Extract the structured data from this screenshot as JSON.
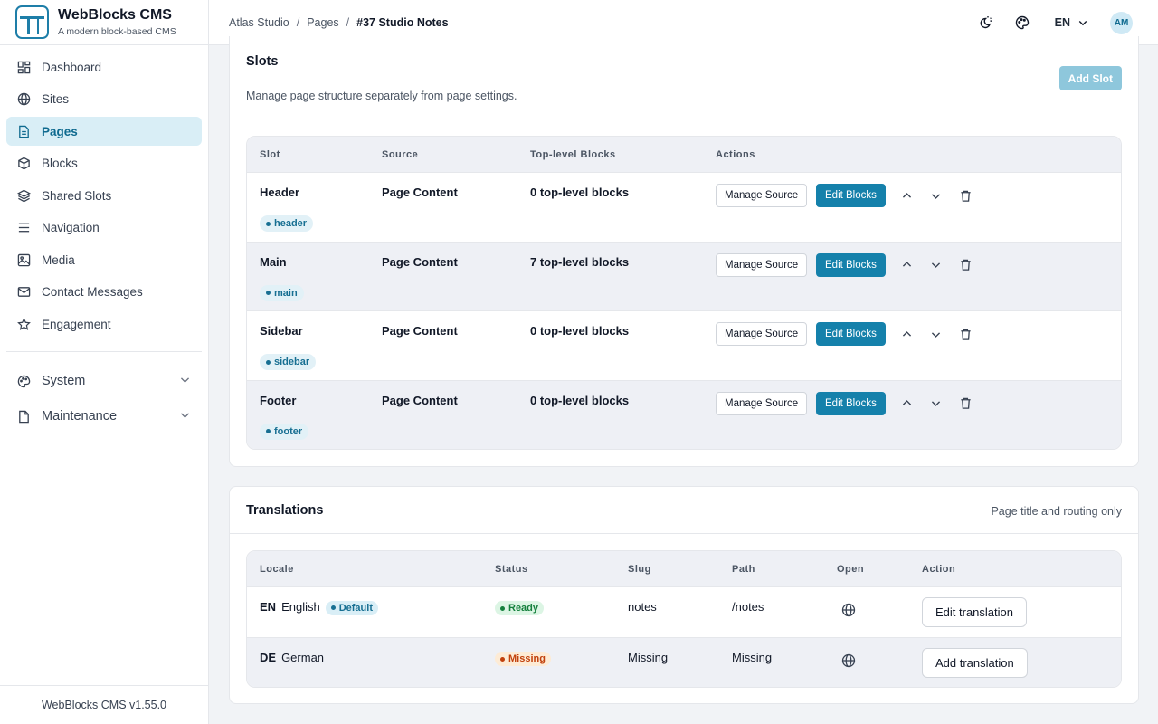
{
  "brand": {
    "title": "WebBlocks CMS",
    "subtitle": "A modern block-based CMS",
    "version": "WebBlocks CMS v1.55.0"
  },
  "sidebar": {
    "items": [
      {
        "label": "Dashboard",
        "icon": "dashboard-icon"
      },
      {
        "label": "Sites",
        "icon": "globe-icon"
      },
      {
        "label": "Pages",
        "icon": "page-icon",
        "active": true
      },
      {
        "label": "Blocks",
        "icon": "cube-icon"
      },
      {
        "label": "Shared Slots",
        "icon": "layers-icon"
      },
      {
        "label": "Navigation",
        "icon": "menu-icon"
      },
      {
        "label": "Media",
        "icon": "image-icon"
      },
      {
        "label": "Contact Messages",
        "icon": "mail-icon"
      },
      {
        "label": "Engagement",
        "icon": "star-icon"
      }
    ],
    "groups": [
      {
        "label": "System",
        "icon": "palette-icon"
      },
      {
        "label": "Maintenance",
        "icon": "file-icon"
      }
    ]
  },
  "breadcrumb": {
    "site": "Atlas Studio",
    "section": "Pages",
    "current": "#37 Studio Notes"
  },
  "topbar": {
    "language": "EN",
    "avatar": "AM"
  },
  "slots": {
    "title": "Slots",
    "description": "Manage page structure separately from page settings.",
    "add_label": "Add Slot",
    "headers": {
      "slot": "Slot",
      "source": "Source",
      "blocks": "Top-level Blocks",
      "actions": "Actions"
    },
    "manage_label": "Manage Source",
    "edit_label": "Edit Blocks",
    "rows": [
      {
        "name": "Header",
        "tag": "header",
        "source": "Page Content",
        "blocks": "0 top-level blocks"
      },
      {
        "name": "Main",
        "tag": "main",
        "source": "Page Content",
        "blocks": "7 top-level blocks"
      },
      {
        "name": "Sidebar",
        "tag": "sidebar",
        "source": "Page Content",
        "blocks": "0 top-level blocks"
      },
      {
        "name": "Footer",
        "tag": "footer",
        "source": "Page Content",
        "blocks": "0 top-level blocks"
      }
    ]
  },
  "translations": {
    "title": "Translations",
    "note": "Page title and routing only",
    "headers": {
      "locale": "Locale",
      "status": "Status",
      "slug": "Slug",
      "path": "Path",
      "open": "Open",
      "action": "Action"
    },
    "rows": [
      {
        "code": "EN",
        "name": "English",
        "default_label": "Default",
        "status": "Ready",
        "slug": "notes",
        "path": "/notes",
        "action": "Edit translation"
      },
      {
        "code": "DE",
        "name": "German",
        "default_label": "",
        "status": "Missing",
        "slug": "Missing",
        "path": "Missing",
        "action": "Add translation"
      }
    ]
  }
}
